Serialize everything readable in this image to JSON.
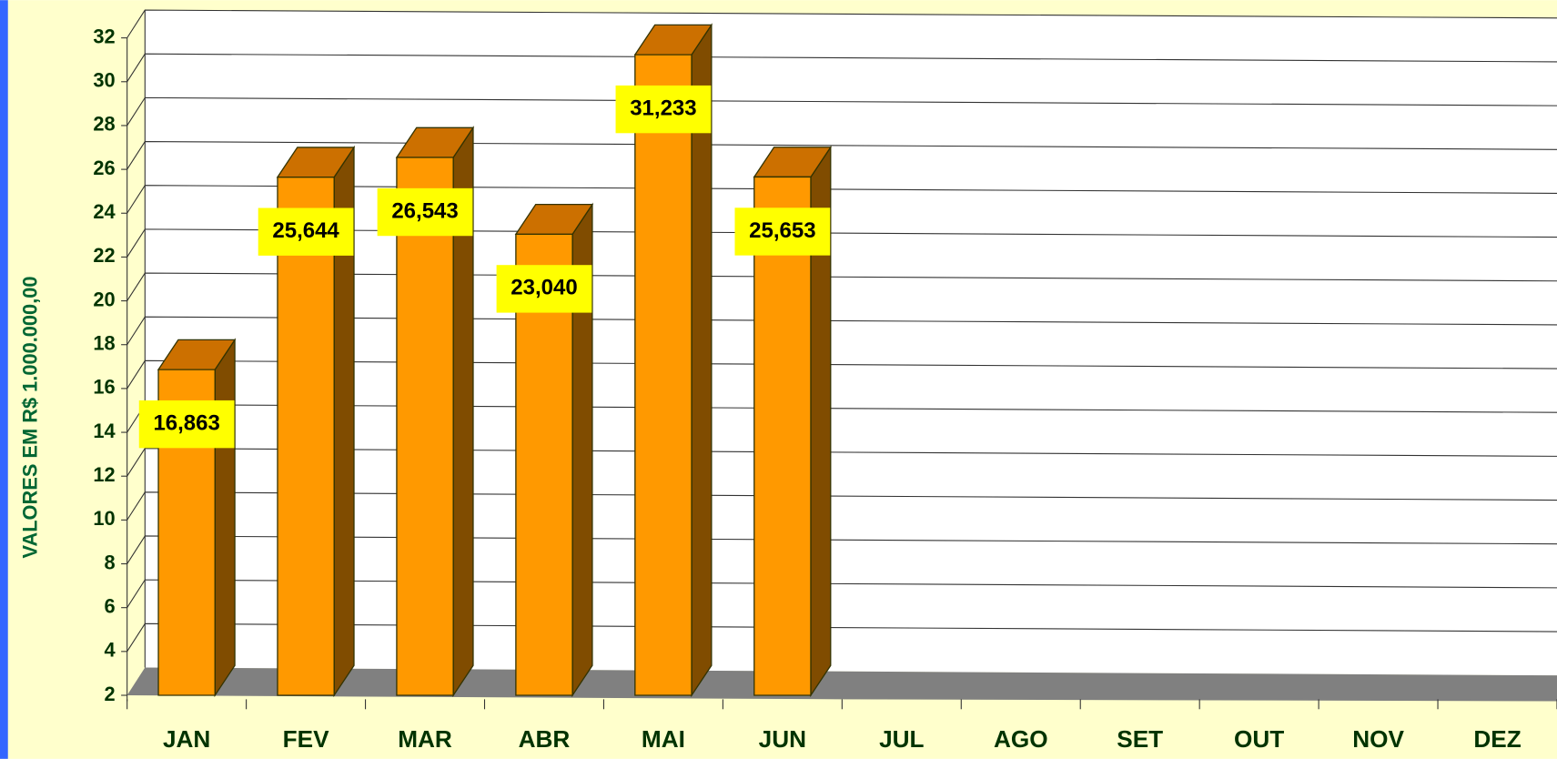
{
  "chart_data": {
    "type": "bar3d",
    "ylabel": "VALORES EM R$ 1.000.000,00",
    "categories": [
      "JAN",
      "FEV",
      "MAR",
      "ABR",
      "MAI",
      "JUN",
      "JUL",
      "AGO",
      "SET",
      "OUT",
      "NOV",
      "DEZ"
    ],
    "values": [
      16.863,
      25.644,
      26.543,
      23.04,
      31.233,
      25.653,
      null,
      null,
      null,
      null,
      null,
      null
    ],
    "value_labels": [
      "16,863",
      "25,644",
      "26,543",
      "23,040",
      "31,233",
      "25,653",
      null,
      null,
      null,
      null,
      null,
      null
    ],
    "color": "#ff9900",
    "ylim": [
      2,
      32
    ],
    "yticks": [
      2,
      4,
      6,
      8,
      10,
      12,
      14,
      16,
      18,
      20,
      22,
      24,
      26,
      28,
      30,
      32
    ],
    "grid": true
  }
}
